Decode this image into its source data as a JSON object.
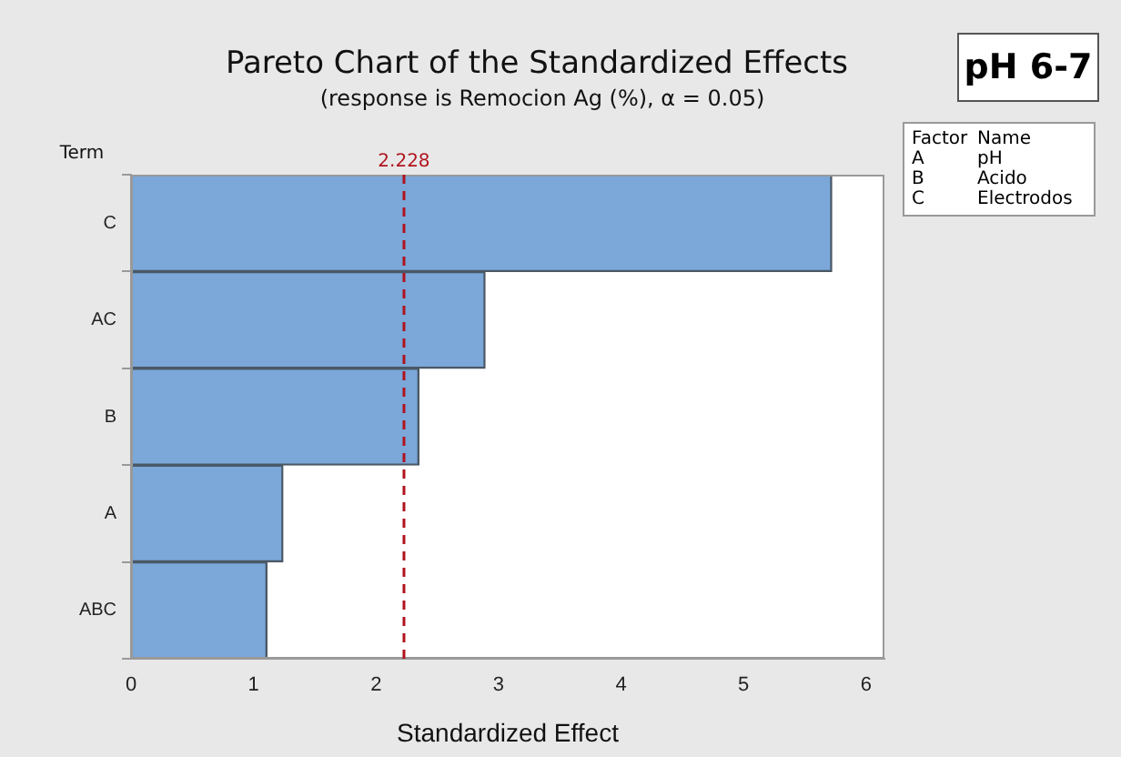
{
  "chart_data": {
    "type": "bar",
    "orientation": "horizontal",
    "title": "Pareto Chart of the Standardized Effects",
    "subtitle": "(response is Remocion Ag (%), α = 0.05)",
    "xlabel": "Standardized Effect",
    "ylabel": "Term",
    "categories": [
      "C",
      "AC",
      "B",
      "A",
      "ABC"
    ],
    "values": [
      5.72,
      2.89,
      2.35,
      1.24,
      1.11
    ],
    "color": "#7ba7d9",
    "xlim": [
      0,
      6.15
    ],
    "xticks": [
      0,
      1,
      2,
      3,
      4,
      5,
      6
    ],
    "ref_lines": [
      {
        "axis": "x",
        "value": 2.228,
        "label": "2.228",
        "color": "#b0141e",
        "line_style": "dashed"
      }
    ],
    "annotations": [
      "pH 6-7",
      "Factor",
      "Name",
      "A",
      "pH",
      "B",
      "Acido",
      "C",
      "Electrodos"
    ],
    "grid": false,
    "legend": false
  }
}
